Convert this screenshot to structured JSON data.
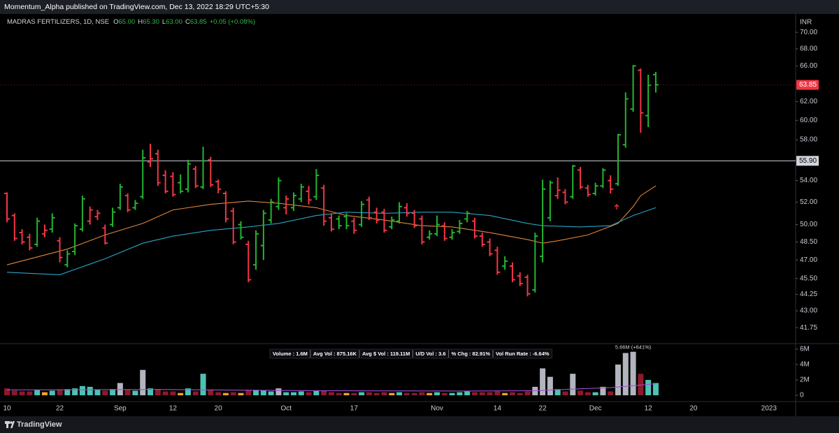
{
  "header": {
    "text": "Momentum_Alpha published on TradingView.com, Dec 13, 2022 18:29 UTC+5:30"
  },
  "legend": {
    "symbol": "MADRAS FERTILIZERS, 1D, NSE",
    "color": "#2fb84a",
    "fields": [
      {
        "key": "O",
        "value": "65.00"
      },
      {
        "key": "H",
        "value": "65.30"
      },
      {
        "key": "L",
        "value": "63.00"
      },
      {
        "key": "C",
        "value": "63.85"
      }
    ],
    "change": "+0.05 (+0.08%)"
  },
  "footer": {
    "brand": "TradingView"
  },
  "chart_data": [
    {
      "type": "ohlc",
      "currency": "INR",
      "log_scale": true,
      "up_color": "#22b530",
      "down_color": "#f23645",
      "categories": [
        "10",
        null,
        null,
        null,
        null,
        null,
        null,
        "22",
        null,
        null,
        null,
        null,
        null,
        null,
        null,
        "Sep",
        null,
        null,
        null,
        null,
        null,
        null,
        "12",
        null,
        null,
        null,
        null,
        null,
        "20",
        null,
        null,
        null,
        null,
        null,
        null,
        null,
        null,
        "Oct",
        null,
        null,
        null,
        null,
        null,
        null,
        null,
        null,
        "17",
        null,
        null,
        null,
        null,
        null,
        null,
        null,
        null,
        null,
        null,
        "Nov",
        null,
        null,
        null,
        null,
        null,
        null,
        null,
        "14",
        null,
        null,
        null,
        null,
        null,
        "22",
        null,
        null,
        null,
        null,
        null,
        null,
        "Dec",
        null,
        null,
        null,
        null,
        null,
        null,
        "12",
        null,
        null,
        null,
        null,
        null,
        "20",
        null,
        null,
        null,
        null,
        null,
        null,
        null,
        null,
        null,
        "2023"
      ],
      "open": [
        52.8,
        50.8,
        49.3,
        48.9,
        48.3,
        49.2,
        49.6,
        48.6,
        46.6,
        47.7,
        49.6,
        50.3,
        50.7,
        49.7,
        50.0,
        51.5,
        52.6,
        51.5,
        52.5,
        55.8,
        56.6,
        54.5,
        54.4,
        53.8,
        53.2,
        55.1,
        53.4,
        56.0,
        53.9,
        52.8,
        51.2,
        50.0,
        48.3,
        46.6,
        48.2,
        50.4,
        51.6,
        51.5,
        51.5,
        52.3,
        53.0,
        52.5,
        53.3,
        50.6,
        50.5,
        50.7,
        50.3,
        50.0,
        52.2,
        51.1,
        51.1,
        49.8,
        50.3,
        51.5,
        51.0,
        50.5,
        48.9,
        49.2,
        49.9,
        48.9,
        49.4,
        50.5,
        50.3,
        49.0,
        48.5,
        47.8,
        46.5,
        46.5,
        45.7,
        45.6,
        44.6,
        47.3,
        50.6,
        52.6,
        52.9,
        52.5,
        55.0,
        53.3,
        52.8,
        53.5,
        54.0,
        53.7,
        57.5,
        61.2,
        65.5,
        60.5,
        65.0,
        null,
        null,
        null,
        null,
        null,
        null,
        null,
        null,
        null,
        null,
        null,
        null,
        null,
        null,
        null
      ],
      "high": [
        52.9,
        51.0,
        49.6,
        49.2,
        50.6,
        50.0,
        51.0,
        48.9,
        47.8,
        50.1,
        52.6,
        51.6,
        51.3,
        50.0,
        51.5,
        53.7,
        52.8,
        52.2,
        57.0,
        57.6,
        57.0,
        55.0,
        54.8,
        54.6,
        56.0,
        55.4,
        57.3,
        56.3,
        54.1,
        53.0,
        51.5,
        50.3,
        48.6,
        49.5,
        51.3,
        52.3,
        54.3,
        52.6,
        52.9,
        53.7,
        53.5,
        55.1,
        53.6,
        51.0,
        50.8,
        51.0,
        50.6,
        52.1,
        52.5,
        51.5,
        51.4,
        50.7,
        52.0,
        51.9,
        51.3,
        50.8,
        49.5,
        50.8,
        50.2,
        49.6,
        50.4,
        51.2,
        50.6,
        49.3,
        48.8,
        48.1,
        47.3,
        46.8,
        46.0,
        45.8,
        49.3,
        54.1,
        54.0,
        54.3,
        53.2,
        55.5,
        55.3,
        53.6,
        53.8,
        55.2,
        54.5,
        58.6,
        63.0,
        66.1,
        65.7,
        65.0,
        65.3,
        null,
        null,
        null,
        null,
        null,
        null,
        null,
        null,
        null,
        null,
        null,
        null,
        null,
        null,
        null
      ],
      "low": [
        50.2,
        48.6,
        48.3,
        47.8,
        48.1,
        48.9,
        49.3,
        46.8,
        46.4,
        47.4,
        49.4,
        50.0,
        50.4,
        48.3,
        49.8,
        51.3,
        51.1,
        51.3,
        52.3,
        55.3,
        53.5,
        52.8,
        52.5,
        52.8,
        52.9,
        53.3,
        53.2,
        53.4,
        52.8,
        50.2,
        48.3,
        48.7,
        45.2,
        46.2,
        47.0,
        50.1,
        51.3,
        50.9,
        51.2,
        52.0,
        51.8,
        52.2,
        49.9,
        49.4,
        49.6,
        49.6,
        49.2,
        49.8,
        50.4,
        50.1,
        49.3,
        49.6,
        50.1,
        50.7,
        49.7,
        48.3,
        48.7,
        49.0,
        48.6,
        48.7,
        49.2,
        50.2,
        48.8,
        48.1,
        47.3,
        45.8,
        46.2,
        45.2,
        44.9,
        44.1,
        44.4,
        46.8,
        50.3,
        52.3,
        51.8,
        52.3,
        53.2,
        52.5,
        52.6,
        53.3,
        52.8,
        53.5,
        57.2,
        60.9,
        58.7,
        59.3,
        63.0,
        null,
        null,
        null,
        null,
        null,
        null,
        null,
        null,
        null,
        null,
        null,
        null,
        null,
        null,
        null
      ],
      "close": [
        50.5,
        48.8,
        48.5,
        48.0,
        50.3,
        49.5,
        50.6,
        47.2,
        47.5,
        49.9,
        52.3,
        51.3,
        51.0,
        48.4,
        51.1,
        53.4,
        51.3,
        51.9,
        56.2,
        56.1,
        53.8,
        53.0,
        52.7,
        53.0,
        55.6,
        53.5,
        55.9,
        53.6,
        53.2,
        50.5,
        48.5,
        48.9,
        45.4,
        49.2,
        51.0,
        52.0,
        54.0,
        52.3,
        52.6,
        53.4,
        52.2,
        54.5,
        50.3,
        49.6,
        49.9,
        49.9,
        49.5,
        51.8,
        50.6,
        50.4,
        49.5,
        50.4,
        51.6,
        51.0,
        49.9,
        48.5,
        49.2,
        50.0,
        48.8,
        49.3,
        50.1,
        51.0,
        49.0,
        48.3,
        47.5,
        46.0,
        46.9,
        45.4,
        45.1,
        44.3,
        49.0,
        53.2,
        53.8,
        53.1,
        52.0,
        55.4,
        53.4,
        52.7,
        53.5,
        55.0,
        53.2,
        58.5,
        62.3,
        66.0,
        60.8,
        63.8,
        63.85,
        null,
        null,
        null,
        null,
        null,
        null,
        null,
        null,
        null,
        null,
        null,
        null,
        null,
        null,
        null
      ],
      "lines": [
        {
          "color": "#e0863a",
          "x": [
            0,
            8,
            13,
            18,
            22,
            27,
            32,
            36,
            41,
            45,
            50,
            55,
            59,
            64,
            69,
            71,
            73,
            77,
            81,
            83,
            84,
            86
          ],
          "values": [
            46.6,
            47.9,
            49.1,
            50.1,
            51.3,
            51.8,
            52.1,
            51.9,
            51.5,
            50.8,
            50.4,
            49.9,
            49.8,
            49.3,
            48.7,
            48.4,
            48.6,
            49.1,
            50.1,
            51.6,
            52.6,
            53.5
          ]
        },
        {
          "color": "#2aa3c4",
          "x": [
            0,
            7,
            13,
            18,
            22,
            27,
            32,
            36,
            41,
            45,
            50,
            55,
            59,
            64,
            69,
            71,
            76,
            80,
            83,
            86
          ],
          "values": [
            46.0,
            45.8,
            47.1,
            48.4,
            49.0,
            49.5,
            49.8,
            50.1,
            50.8,
            51.1,
            51.0,
            51.1,
            51.1,
            50.8,
            50.1,
            49.9,
            49.8,
            49.9,
            50.8,
            51.5
          ]
        }
      ],
      "hline": {
        "value": 55.9,
        "label": "55.90",
        "color": "#d1d4dc"
      },
      "last_price": {
        "value": 63.85,
        "label": "63.85",
        "color": "#f23645"
      },
      "ylim": [
        40.7,
        71.4
      ],
      "yticks": [
        {
          "value": 70,
          "label": "70.00"
        },
        {
          "value": 68,
          "label": "68.00"
        },
        {
          "value": 66,
          "label": "66.00"
        },
        {
          "value": 62,
          "label": "62.00"
        },
        {
          "value": 60,
          "label": "60.00"
        },
        {
          "value": 58,
          "label": "58.00"
        },
        {
          "value": 54,
          "label": "54.00"
        },
        {
          "value": 52,
          "label": "52.00"
        },
        {
          "value": 50,
          "label": "50.00"
        },
        {
          "value": 48.5,
          "label": "48.50"
        },
        {
          "value": 47,
          "label": "47.00"
        },
        {
          "value": 45.5,
          "label": "45.50"
        },
        {
          "value": 44.25,
          "label": "44.25"
        },
        {
          "value": 43,
          "label": "43.00"
        },
        {
          "value": 41.75,
          "label": "41.75"
        }
      ]
    },
    {
      "type": "bar",
      "values": [
        900000,
        600000,
        500000,
        500000,
        700000,
        400000,
        600000,
        700000,
        800000,
        900000,
        1200000,
        1100000,
        700000,
        600000,
        800000,
        1600000,
        700000,
        600000,
        3300000,
        900000,
        800000,
        500000,
        500000,
        300000,
        900000,
        500000,
        2800000,
        700000,
        400000,
        300000,
        400000,
        300000,
        700000,
        700000,
        600000,
        500000,
        900000,
        400000,
        400000,
        500000,
        400000,
        600000,
        600000,
        400000,
        300000,
        300000,
        300000,
        400000,
        400000,
        300000,
        400000,
        300000,
        400000,
        300000,
        300000,
        400000,
        300000,
        400000,
        300000,
        300000,
        400000,
        500000,
        400000,
        400000,
        400000,
        500000,
        300000,
        400000,
        300000,
        500000,
        1100000,
        3500000,
        2400000,
        800000,
        500000,
        2800000,
        600000,
        400000,
        400000,
        1100000,
        500000,
        4000000,
        5500000,
        5660000,
        2800000,
        2000000,
        1600000,
        null,
        null,
        null,
        null,
        null,
        null,
        null,
        null,
        null,
        null,
        null,
        null,
        null,
        null,
        null
      ],
      "value_labels": [
        null,
        null,
        null,
        null,
        null,
        null,
        null,
        null,
        null,
        null,
        null,
        null,
        null,
        null,
        null,
        null,
        null,
        null,
        null,
        null,
        null,
        null,
        null,
        null,
        null,
        null,
        null,
        null,
        null,
        null,
        null,
        null,
        null,
        null,
        null,
        null,
        null,
        null,
        null,
        null,
        null,
        null,
        null,
        null,
        null,
        null,
        null,
        null,
        null,
        null,
        null,
        null,
        null,
        null,
        null,
        null,
        null,
        null,
        null,
        null,
        null,
        null,
        null,
        null,
        null,
        null,
        null,
        null,
        null,
        null,
        null,
        null,
        null,
        null,
        null,
        null,
        null,
        null,
        null,
        null,
        null,
        null,
        null,
        "5.66M (+641%)",
        null,
        null,
        null,
        null,
        null,
        null,
        null,
        null,
        null,
        null,
        null,
        null,
        null,
        null,
        null,
        null,
        null,
        null
      ],
      "colors": [
        "#8b1a2b",
        "#8b1a2b",
        "#8b1a2b",
        "#8b1a2b",
        "#4cc2b4",
        "#f7a21b",
        "#4cc2b4",
        "#8b1a2b",
        "#4cc2b4",
        "#4cc2b4",
        "#4cc2b4",
        "#4cc2b4",
        "#4cc2b4",
        "#8b1a2b",
        "#4cc2b4",
        "#b2b5be",
        "#8b1a2b",
        "#4cc2b4",
        "#b2b5be",
        "#4cc2b4",
        "#8b1a2b",
        "#8b1a2b",
        "#8b1a2b",
        "#f7a21b",
        "#4cc2b4",
        "#8b1a2b",
        "#4cc2b4",
        "#8b1a2b",
        "#8b1a2b",
        "#f7a21b",
        "#8b1a2b",
        "#f7a21b",
        "#8b1a2b",
        "#4cc2b4",
        "#4cc2b4",
        "#4cc2b4",
        "#b2b5be",
        "#4cc2b4",
        "#4cc2b4",
        "#4cc2b4",
        "#8b1a2b",
        "#4cc2b4",
        "#8b1a2b",
        "#8b1a2b",
        "#8b1a2b",
        "#f7a21b",
        "#8b1a2b",
        "#4cc2b4",
        "#8b1a2b",
        "#8b1a2b",
        "#8b1a2b",
        "#f7a21b",
        "#4cc2b4",
        "#8b1a2b",
        "#8b1a2b",
        "#8b1a2b",
        "#f7a21b",
        "#4cc2b4",
        "#8b1a2b",
        "#4cc2b4",
        "#4cc2b4",
        "#4cc2b4",
        "#8b1a2b",
        "#8b1a2b",
        "#8b1a2b",
        "#8b1a2b",
        "#f7a21b",
        "#8b1a2b",
        "#8b1a2b",
        "#8b1a2b",
        "#b2b5be",
        "#b2b5be",
        "#b2b5be",
        "#4cc2b4",
        "#8b1a2b",
        "#b2b5be",
        "#8b1a2b",
        "#8b1a2b",
        "#4cc2b4",
        "#b2b5be",
        "#8b1a2b",
        "#b2b5be",
        "#b2b5be",
        "#b2b5be",
        "#8b1a2b",
        "#4cc2b4",
        "#4cc2b4",
        null,
        null,
        null,
        null,
        null,
        null,
        null,
        null,
        null,
        null,
        null,
        null,
        null,
        null,
        null
      ],
      "lines": [
        {
          "color": "#a04fd6",
          "x": [
            0,
            20,
            40,
            60,
            70,
            75,
            80,
            86
          ],
          "values": [
            700000,
            750000,
            600000,
            550000,
            600000,
            800000,
            1000000,
            1500000
          ]
        }
      ],
      "stats": [
        "Volume : 1.6M",
        "Avg Vol : 875.16K",
        "Avg $ Vol : 119.11M",
        "U/D Vol : 3.6",
        "% Chg : 82.91%",
        "Vol Run Rate : -6.64%"
      ],
      "ylim": [
        0,
        6450000
      ],
      "yticks": [
        0,
        {
          "value": 2000000,
          "label": "2M"
        },
        {
          "value": 4000000,
          "label": "4M"
        },
        {
          "value": 6000000,
          "label": "6M"
        }
      ]
    }
  ]
}
